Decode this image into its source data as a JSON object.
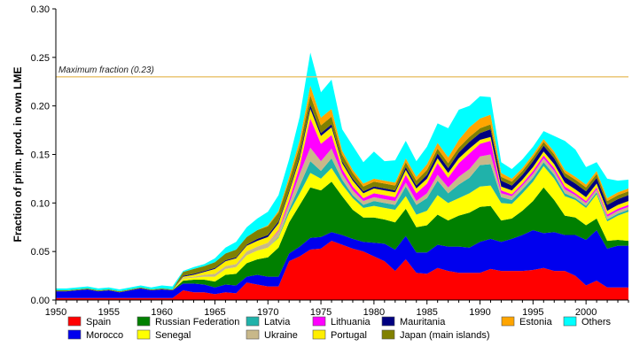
{
  "chart_data": {
    "type": "area",
    "ylabel": "Fraction of prim. prod. in own LME",
    "xlim": [
      1950,
      2004
    ],
    "ylim": [
      0,
      0.3
    ],
    "x_ticks": [
      "1950",
      "1955",
      "1960",
      "1965",
      "1970",
      "1975",
      "1980",
      "1985",
      "1990",
      "1995",
      "2000"
    ],
    "y_ticks": [
      "0.00",
      "0.05",
      "0.10",
      "0.15",
      "0.20",
      "0.25",
      "0.30"
    ],
    "grid": false,
    "legend_position": "bottom",
    "x": [
      1950,
      1951,
      1952,
      1953,
      1954,
      1955,
      1956,
      1957,
      1958,
      1959,
      1960,
      1961,
      1962,
      1963,
      1964,
      1965,
      1966,
      1967,
      1968,
      1969,
      1970,
      1971,
      1972,
      1973,
      1974,
      1975,
      1976,
      1977,
      1978,
      1979,
      1980,
      1981,
      1982,
      1983,
      1984,
      1985,
      1986,
      1987,
      1988,
      1989,
      1990,
      1991,
      1992,
      1993,
      1994,
      1995,
      1996,
      1997,
      1998,
      1999,
      2000,
      2001,
      2002,
      2003,
      2004
    ],
    "series": [
      {
        "name": "Spain",
        "color": "#ff0000",
        "values": [
          0.002,
          0.002,
          0.002,
          0.002,
          0.002,
          0.002,
          0.002,
          0.002,
          0.002,
          0.002,
          0.002,
          0.002,
          0.01,
          0.008,
          0.008,
          0.006,
          0.008,
          0.007,
          0.018,
          0.016,
          0.014,
          0.014,
          0.04,
          0.045,
          0.052,
          0.053,
          0.061,
          0.057,
          0.053,
          0.05,
          0.045,
          0.04,
          0.03,
          0.042,
          0.028,
          0.027,
          0.033,
          0.03,
          0.028,
          0.028,
          0.028,
          0.032,
          0.03,
          0.03,
          0.03,
          0.031,
          0.033,
          0.03,
          0.03,
          0.025,
          0.015,
          0.02,
          0.013,
          0.013,
          0.013
        ]
      },
      {
        "name": "Morocco",
        "color": "#0000ee",
        "values": [
          0.007,
          0.007,
          0.008,
          0.009,
          0.007,
          0.008,
          0.006,
          0.008,
          0.01,
          0.008,
          0.009,
          0.008,
          0.007,
          0.009,
          0.008,
          0.007,
          0.008,
          0.008,
          0.006,
          0.01,
          0.01,
          0.01,
          0.008,
          0.01,
          0.012,
          0.012,
          0.009,
          0.01,
          0.01,
          0.01,
          0.014,
          0.018,
          0.022,
          0.024,
          0.021,
          0.022,
          0.024,
          0.025,
          0.027,
          0.026,
          0.032,
          0.031,
          0.03,
          0.033,
          0.037,
          0.041,
          0.036,
          0.04,
          0.037,
          0.042,
          0.047,
          0.052,
          0.04,
          0.043,
          0.043
        ]
      },
      {
        "name": "Russian Federation",
        "color": "#008000",
        "values": [
          0,
          0,
          0,
          0,
          0,
          0,
          0,
          0,
          0,
          0,
          0,
          0,
          0.003,
          0.004,
          0.005,
          0.006,
          0.01,
          0.012,
          0.014,
          0.016,
          0.02,
          0.03,
          0.032,
          0.043,
          0.052,
          0.048,
          0.052,
          0.04,
          0.03,
          0.025,
          0.026,
          0.025,
          0.028,
          0.028,
          0.026,
          0.028,
          0.031,
          0.027,
          0.032,
          0.036,
          0.036,
          0.034,
          0.022,
          0.021,
          0.025,
          0.03,
          0.047,
          0.033,
          0.02,
          0.018,
          0.015,
          0.012,
          0.008,
          0.006,
          0.005
        ]
      },
      {
        "name": "Senegal",
        "color": "#ffff00",
        "values": [
          0,
          0,
          0,
          0,
          0,
          0,
          0,
          0,
          0,
          0,
          0,
          0,
          0.002,
          0.002,
          0.003,
          0.005,
          0.006,
          0.007,
          0.008,
          0.009,
          0.01,
          0.01,
          0.01,
          0.012,
          0.015,
          0.012,
          0.014,
          0.012,
          0.012,
          0.01,
          0.012,
          0.012,
          0.013,
          0.013,
          0.013,
          0.015,
          0.02,
          0.018,
          0.018,
          0.02,
          0.021,
          0.021,
          0.018,
          0.015,
          0.018,
          0.02,
          0.022,
          0.022,
          0.02,
          0.018,
          0.018,
          0.025,
          0.02,
          0.025,
          0.03
        ]
      },
      {
        "name": "Latvia",
        "color": "#20b2aa",
        "values": [
          0,
          0,
          0,
          0,
          0,
          0,
          0,
          0,
          0,
          0,
          0,
          0,
          0,
          0,
          0,
          0,
          0,
          0,
          0,
          0,
          0,
          0.001,
          0.003,
          0.008,
          0.012,
          0.008,
          0.01,
          0.005,
          0.003,
          0.003,
          0.005,
          0.005,
          0.005,
          0.01,
          0.01,
          0.013,
          0.015,
          0.01,
          0.014,
          0.016,
          0.022,
          0.022,
          0.006,
          0.004,
          0.004,
          0.004,
          0.004,
          0.004,
          0.003,
          0.002,
          0.002,
          0.002,
          0.002,
          0.002,
          0.002
        ]
      },
      {
        "name": "Ukraine",
        "color": "#c8b88a",
        "values": [
          0,
          0,
          0,
          0,
          0,
          0,
          0,
          0,
          0,
          0,
          0,
          0,
          0.001,
          0.001,
          0.002,
          0.003,
          0.003,
          0.003,
          0.004,
          0.004,
          0.005,
          0.006,
          0.006,
          0.012,
          0.014,
          0.01,
          0.01,
          0.006,
          0.005,
          0.004,
          0.004,
          0.004,
          0.004,
          0.004,
          0.004,
          0.005,
          0.006,
          0.006,
          0.008,
          0.009,
          0.009,
          0.01,
          0.004,
          0.004,
          0.004,
          0.004,
          0.004,
          0.004,
          0.004,
          0.003,
          0.003,
          0.003,
          0.003,
          0.003,
          0.003
        ]
      },
      {
        "name": "Lithuania",
        "color": "#ff00ff",
        "values": [
          0,
          0,
          0,
          0,
          0,
          0,
          0,
          0,
          0,
          0,
          0,
          0,
          0,
          0,
          0,
          0,
          0,
          0,
          0,
          0,
          0,
          0.001,
          0.004,
          0.008,
          0.03,
          0.018,
          0.014,
          0.005,
          0.004,
          0.003,
          0.004,
          0.004,
          0.004,
          0.008,
          0.008,
          0.01,
          0.012,
          0.01,
          0.014,
          0.016,
          0.013,
          0.014,
          0.003,
          0.002,
          0.002,
          0.003,
          0.003,
          0.003,
          0.003,
          0.002,
          0.002,
          0.002,
          0.002,
          0.002,
          0.002
        ]
      },
      {
        "name": "Portugal",
        "color": "#ffee00",
        "values": [
          0,
          0,
          0,
          0,
          0,
          0,
          0,
          0,
          0,
          0,
          0,
          0,
          0.001,
          0.002,
          0.003,
          0.005,
          0.005,
          0.006,
          0.006,
          0.006,
          0.006,
          0.007,
          0.008,
          0.008,
          0.01,
          0.008,
          0.008,
          0.006,
          0.006,
          0.005,
          0.005,
          0.005,
          0.005,
          0.005,
          0.005,
          0.005,
          0.005,
          0.005,
          0.005,
          0.005,
          0.004,
          0.004,
          0.004,
          0.004,
          0.004,
          0.004,
          0.004,
          0.004,
          0.004,
          0.004,
          0.004,
          0.004,
          0.004,
          0.004,
          0.004
        ]
      },
      {
        "name": "Mauritania",
        "color": "#000080",
        "values": [
          0,
          0,
          0,
          0,
          0,
          0,
          0,
          0,
          0,
          0,
          0,
          0,
          0.001,
          0.001,
          0.001,
          0.001,
          0.001,
          0.001,
          0.001,
          0.002,
          0.002,
          0.002,
          0.002,
          0.003,
          0.004,
          0.003,
          0.003,
          0.002,
          0.002,
          0.002,
          0.002,
          0.002,
          0.002,
          0.003,
          0.003,
          0.004,
          0.005,
          0.005,
          0.006,
          0.007,
          0.007,
          0.008,
          0.006,
          0.005,
          0.005,
          0.006,
          0.006,
          0.006,
          0.006,
          0.006,
          0.006,
          0.006,
          0.006,
          0.006,
          0.006
        ]
      },
      {
        "name": "Japan (main islands)",
        "color": "#808000",
        "values": [
          0.001,
          0.001,
          0.001,
          0.001,
          0.001,
          0.001,
          0.001,
          0.001,
          0.001,
          0.001,
          0.001,
          0.001,
          0.004,
          0.005,
          0.005,
          0.006,
          0.007,
          0.008,
          0.008,
          0.009,
          0.009,
          0.009,
          0.01,
          0.01,
          0.01,
          0.008,
          0.008,
          0.007,
          0.006,
          0.005,
          0.005,
          0.005,
          0.005,
          0.005,
          0.005,
          0.005,
          0.005,
          0.005,
          0.005,
          0.005,
          0.005,
          0.005,
          0.004,
          0.004,
          0.004,
          0.004,
          0.004,
          0.004,
          0.004,
          0.004,
          0.004,
          0.004,
          0.004,
          0.004,
          0.004
        ]
      },
      {
        "name": "Estonia",
        "color": "#ffa500",
        "values": [
          0,
          0,
          0,
          0,
          0,
          0,
          0,
          0,
          0,
          0,
          0,
          0,
          0,
          0,
          0,
          0,
          0,
          0,
          0,
          0,
          0.001,
          0.002,
          0.004,
          0.006,
          0.01,
          0.008,
          0.008,
          0.004,
          0.003,
          0.003,
          0.003,
          0.003,
          0.003,
          0.004,
          0.004,
          0.006,
          0.006,
          0.006,
          0.008,
          0.01,
          0.01,
          0.01,
          0.004,
          0.003,
          0.003,
          0.003,
          0.003,
          0.003,
          0.003,
          0.003,
          0.003,
          0.003,
          0.003,
          0.003,
          0.003
        ]
      },
      {
        "name": "Others",
        "color": "#00ffff",
        "values": [
          0.002,
          0.002,
          0.002,
          0.002,
          0.002,
          0.002,
          0.002,
          0.002,
          0.002,
          0.002,
          0.003,
          0.003,
          0.001,
          0.002,
          0.002,
          0.004,
          0.006,
          0.008,
          0.01,
          0.012,
          0.014,
          0.016,
          0.018,
          0.024,
          0.034,
          0.026,
          0.03,
          0.022,
          0.025,
          0.022,
          0.028,
          0.02,
          0.023,
          0.018,
          0.016,
          0.018,
          0.02,
          0.03,
          0.031,
          0.022,
          0.023,
          0.018,
          0.011,
          0.01,
          0.009,
          0.008,
          0.008,
          0.016,
          0.03,
          0.028,
          0.018,
          0.009,
          0.02,
          0.012,
          0.009
        ]
      }
    ],
    "annotations": [
      {
        "text": "Maximum fraction (0.23)",
        "y": 0.23,
        "color": "#e8c06a"
      }
    ],
    "legend_rows": [
      [
        "Spain",
        "Russian Federation",
        "Latvia",
        "Lithuania",
        "Mauritania",
        "Estonia",
        "Others"
      ],
      [
        "Morocco",
        "Senegal",
        "Ukraine",
        "Portugal",
        "Japan (main islands)"
      ]
    ]
  }
}
